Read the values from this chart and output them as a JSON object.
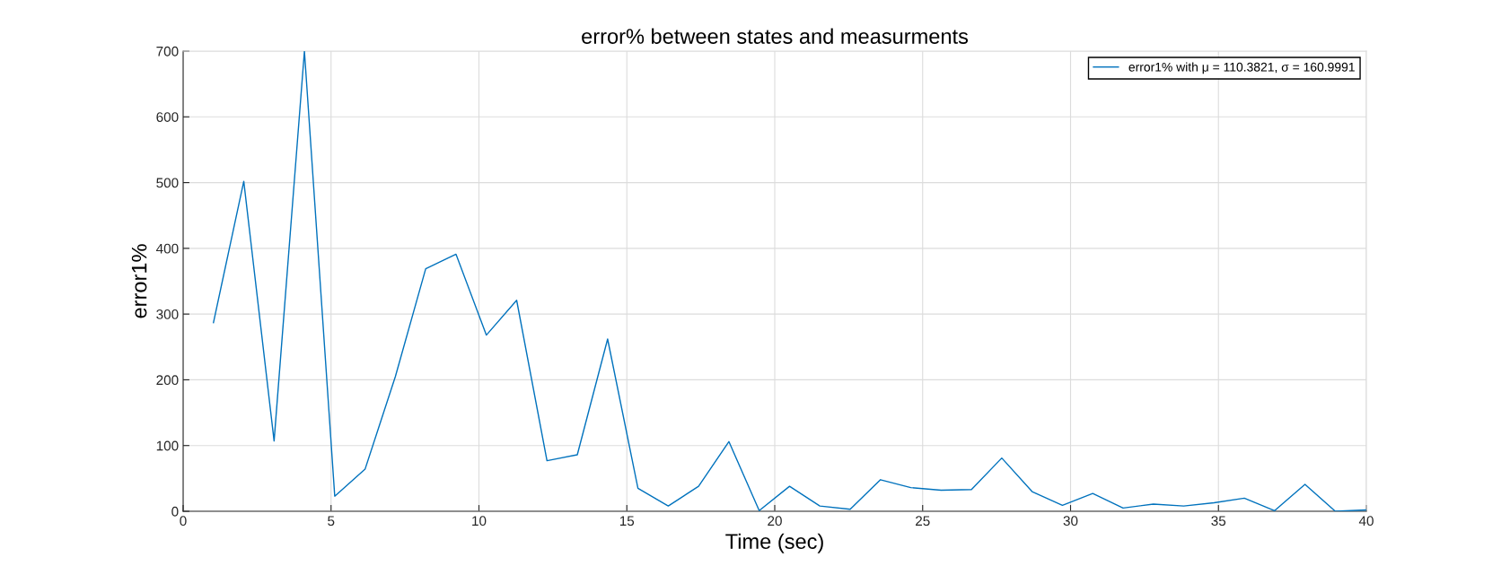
{
  "chart_data": {
    "type": "line",
    "title": "error% between states and measurments",
    "xlabel": "Time (sec)",
    "ylabel": "error1%",
    "x": [
      1.025,
      2.05,
      3.075,
      4.1,
      5.125,
      6.15,
      7.175,
      8.2,
      9.225,
      10.25,
      11.275,
      12.3,
      13.325,
      14.35,
      15.375,
      16.4,
      17.425,
      18.45,
      19.475,
      20.5,
      21.525,
      22.55,
      23.575,
      24.6,
      25.625,
      26.65,
      27.675,
      28.7,
      29.725,
      30.75,
      31.775,
      32.8,
      33.825,
      34.85,
      35.875,
      36.9,
      37.925,
      38.95,
      39.975
    ],
    "series": [
      {
        "name": "error1% with μ = 110.3821, σ = 160.9991",
        "color": "#0072bd",
        "values": [
          287,
          502,
          107,
          700,
          23,
          64,
          205,
          369,
          391,
          268,
          321,
          77,
          86,
          262,
          35,
          8,
          38,
          106,
          1,
          38,
          8,
          3,
          48,
          36,
          32,
          33,
          81,
          30,
          9,
          27,
          5,
          11,
          8,
          13,
          20,
          1,
          41,
          0,
          2
        ]
      }
    ],
    "xlim": [
      0,
      40
    ],
    "xticks": [
      0,
      5,
      10,
      15,
      20,
      25,
      30,
      35,
      40
    ],
    "ylim": [
      0,
      700
    ],
    "yticks": [
      0,
      100,
      200,
      300,
      400,
      500,
      600,
      700
    ],
    "grid": true,
    "legend": "top right",
    "marker": "none",
    "line_style": "solid"
  }
}
